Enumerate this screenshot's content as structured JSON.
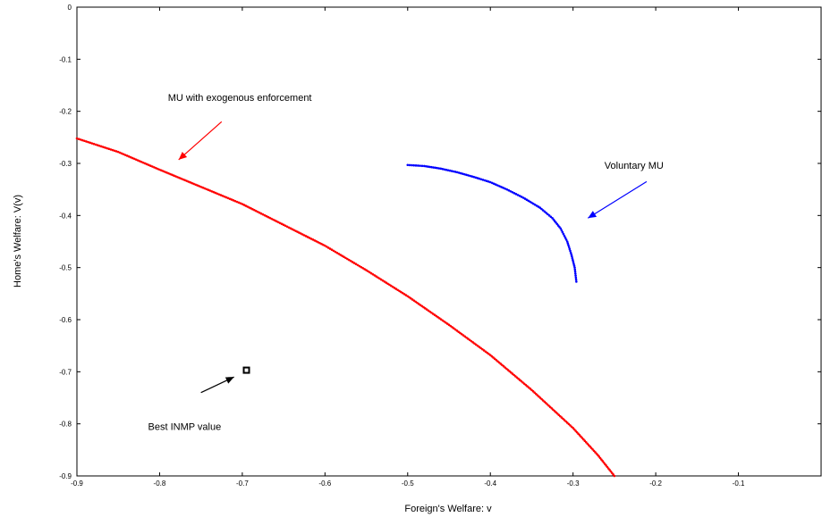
{
  "chart_data": {
    "type": "scatter",
    "xlabel": "Foreign's Welfare: v",
    "ylabel": "Home's Welfare: V(v)",
    "xlim": [
      -0.9,
      0
    ],
    "ylim": [
      -0.9,
      0
    ],
    "x_ticks": [
      {
        "value": -0.9,
        "label": "-0.9"
      },
      {
        "value": -0.8,
        "label": "-0.8"
      },
      {
        "value": -0.7,
        "label": "-0.7"
      },
      {
        "value": -0.6,
        "label": "-0.6"
      },
      {
        "value": -0.5,
        "label": "-0.5"
      },
      {
        "value": -0.4,
        "label": "-0.4"
      },
      {
        "value": -0.3,
        "label": "-0.3"
      },
      {
        "value": -0.2,
        "label": "-0.2"
      },
      {
        "value": -0.1,
        "label": "-0.1"
      }
    ],
    "y_ticks": [
      {
        "value": 0,
        "label": "0"
      },
      {
        "value": -0.1,
        "label": "-0.1"
      },
      {
        "value": -0.2,
        "label": "-0.2"
      },
      {
        "value": -0.3,
        "label": "-0.3"
      },
      {
        "value": -0.4,
        "label": "-0.4"
      },
      {
        "value": -0.5,
        "label": "-0.5"
      },
      {
        "value": -0.6,
        "label": "-0.6"
      },
      {
        "value": -0.7,
        "label": "-0.7"
      },
      {
        "value": -0.8,
        "label": "-0.8"
      },
      {
        "value": -0.9,
        "label": "-0.9"
      }
    ],
    "grid": false,
    "series": [
      {
        "color": "#ff0000",
        "points": [
          [
            -0.9,
            -0.252
          ],
          [
            -0.85,
            -0.278
          ],
          [
            -0.8,
            -0.312
          ],
          [
            -0.75,
            -0.345
          ],
          [
            -0.7,
            -0.378
          ],
          [
            -0.65,
            -0.418
          ],
          [
            -0.6,
            -0.458
          ],
          [
            -0.55,
            -0.505
          ],
          [
            -0.5,
            -0.555
          ],
          [
            -0.45,
            -0.61
          ],
          [
            -0.4,
            -0.668
          ],
          [
            -0.35,
            -0.735
          ],
          [
            -0.3,
            -0.808
          ],
          [
            -0.27,
            -0.86
          ],
          [
            -0.25,
            -0.9
          ]
        ]
      },
      {
        "color": "#0000ff",
        "points": [
          [
            -0.5,
            -0.303
          ],
          [
            -0.48,
            -0.305
          ],
          [
            -0.46,
            -0.31
          ],
          [
            -0.44,
            -0.317
          ],
          [
            -0.42,
            -0.326
          ],
          [
            -0.4,
            -0.336
          ],
          [
            -0.38,
            -0.35
          ],
          [
            -0.36,
            -0.366
          ],
          [
            -0.34,
            -0.385
          ],
          [
            -0.325,
            -0.405
          ],
          [
            -0.315,
            -0.425
          ],
          [
            -0.307,
            -0.45
          ],
          [
            -0.302,
            -0.475
          ],
          [
            -0.298,
            -0.5
          ],
          [
            -0.296,
            -0.527
          ]
        ]
      },
      {
        "color": "#000000",
        "points": [
          [
            -0.695,
            -0.697
          ]
        ]
      }
    ],
    "annotations": [
      {
        "text": "MU with exogenous enforcement",
        "color": "#000000",
        "arrow_color": "#ff0000",
        "text_at": [
          -0.79,
          -0.18
        ],
        "arrow_from": [
          -0.725,
          -0.22
        ],
        "arrow_to": [
          -0.777,
          -0.293
        ]
      },
      {
        "text": "Voluntary MU",
        "color": "#000000",
        "arrow_color": "#0000ff",
        "text_at": [
          -0.262,
          -0.31
        ],
        "arrow_from": [
          -0.211,
          -0.335
        ],
        "arrow_to": [
          -0.282,
          -0.405
        ]
      },
      {
        "text": "Best  INMP value",
        "color": "#000000",
        "arrow_color": "#000000",
        "text_at": [
          -0.814,
          -0.812
        ],
        "arrow_from": [
          -0.75,
          -0.74
        ],
        "arrow_to": [
          -0.71,
          -0.71
        ]
      }
    ]
  }
}
